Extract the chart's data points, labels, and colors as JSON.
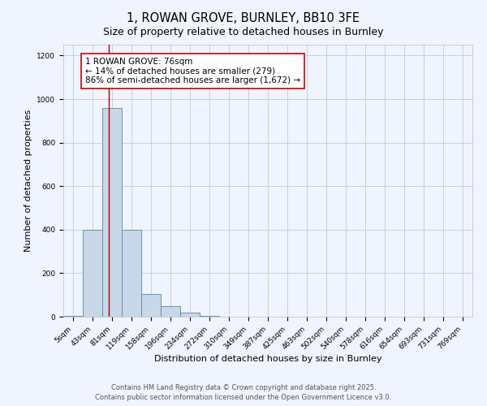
{
  "title": "1, ROWAN GROVE, BURNLEY, BB10 3FE",
  "subtitle": "Size of property relative to detached houses in Burnley",
  "xlabel": "Distribution of detached houses by size in Burnley",
  "ylabel": "Number of detached properties",
  "bar_labels": [
    "5sqm",
    "43sqm",
    "81sqm",
    "119sqm",
    "158sqm",
    "196sqm",
    "234sqm",
    "272sqm",
    "310sqm",
    "349sqm",
    "387sqm",
    "425sqm",
    "463sqm",
    "502sqm",
    "540sqm",
    "578sqm",
    "616sqm",
    "654sqm",
    "693sqm",
    "731sqm",
    "769sqm"
  ],
  "bar_values": [
    5,
    400,
    960,
    400,
    105,
    50,
    18,
    5,
    0,
    0,
    0,
    0,
    0,
    0,
    0,
    0,
    0,
    0,
    0,
    0,
    0
  ],
  "bar_color": "#c8d8e8",
  "bar_edge_color": "#5588aa",
  "background_color": "#f0f4ff",
  "grid_color": "#c0c8d8",
  "vline_x": 1.85,
  "vline_color": "#aa0000",
  "annotation_line1": "1 ROWAN GROVE: 76sqm",
  "annotation_line2": "← 14% of detached houses are smaller (279)",
  "annotation_line3": "86% of semi-detached houses are larger (1,672) →",
  "annotation_box_color": "#ffffff",
  "annotation_box_edge_color": "#cc0000",
  "ylim": [
    0,
    1250
  ],
  "yticks": [
    0,
    200,
    400,
    600,
    800,
    1000,
    1200
  ],
  "footer1": "Contains HM Land Registry data © Crown copyright and database right 2025.",
  "footer2": "Contains public sector information licensed under the Open Government Licence v3.0.",
  "title_fontsize": 10.5,
  "subtitle_fontsize": 9,
  "axis_label_fontsize": 8,
  "tick_fontsize": 6.5,
  "annotation_fontsize": 7.5,
  "footer_fontsize": 6
}
